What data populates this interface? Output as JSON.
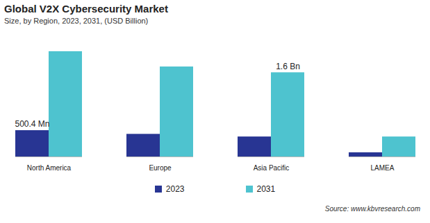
{
  "chart_data": {
    "type": "bar",
    "title": "Global V2X Cybersecurity Market",
    "subtitle": "Size, by Region, 2023, 2031, (USD Billion)",
    "source": "Source: www.kbvresearch.com",
    "categories": [
      "North America",
      "Europe",
      "Asia Pacific",
      "LAMEA"
    ],
    "series": [
      {
        "name": "2023",
        "color": "#283593",
        "values": [
          0.5004,
          0.43,
          0.38,
          0.08
        ],
        "value_labels": [
          "500.4 Mn",
          null,
          null,
          null
        ]
      },
      {
        "name": "2031",
        "color": "#4ec3cf",
        "values": [
          2.0,
          1.71,
          1.6,
          0.38
        ],
        "value_labels": [
          null,
          null,
          "1.6 Bn",
          null
        ]
      }
    ],
    "tick_labels": "x",
    "legend": "bottom"
  }
}
